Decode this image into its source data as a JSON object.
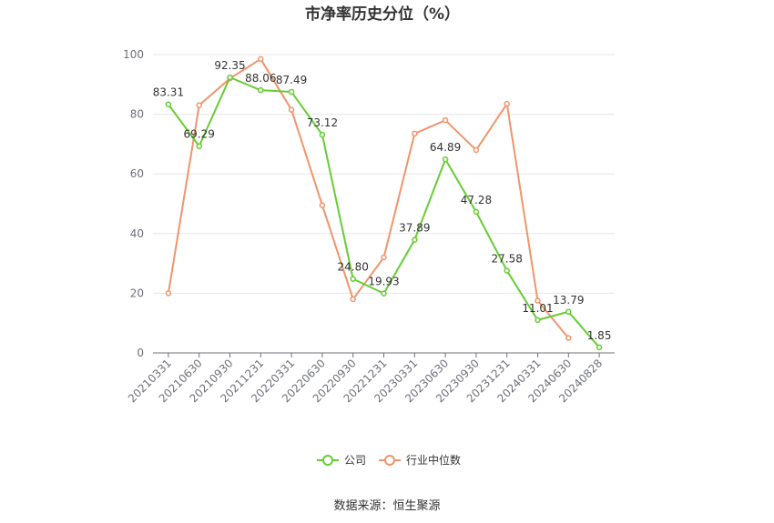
{
  "chart_data": {
    "type": "line",
    "title": "市净率历史分位（%）",
    "categories": [
      "20210331",
      "20210630",
      "20210930",
      "20211231",
      "20220331",
      "20220630",
      "20220930",
      "20221231",
      "20230331",
      "20230630",
      "20230930",
      "20231231",
      "20240331",
      "20240630",
      "20240828"
    ],
    "ylim": [
      0,
      100
    ],
    "yticks": [
      0,
      20,
      40,
      60,
      80,
      100
    ],
    "grid": true,
    "legend_position": "bottom",
    "series": [
      {
        "name": "公司",
        "color": "#66cc33",
        "values": [
          83.31,
          69.29,
          92.35,
          88.06,
          87.49,
          73.12,
          24.8,
          19.93,
          37.89,
          64.89,
          47.28,
          27.58,
          11.01,
          13.79,
          1.85
        ],
        "labels": [
          "83.31",
          "69.29",
          "92.35",
          "88.06",
          "87.49",
          "73.12",
          "24.80",
          "19.93",
          "37.89",
          "64.89",
          "47.28",
          "27.58",
          "11.01",
          "13.79",
          "1.85"
        ]
      },
      {
        "name": "行业中位数",
        "color": "#f0946b",
        "values": [
          20.0,
          83.0,
          92.0,
          98.5,
          81.5,
          49.5,
          18.0,
          32.0,
          73.5,
          78.0,
          68.0,
          83.5,
          17.5,
          5.0,
          null
        ]
      }
    ],
    "source": "数据来源：恒生聚源"
  }
}
